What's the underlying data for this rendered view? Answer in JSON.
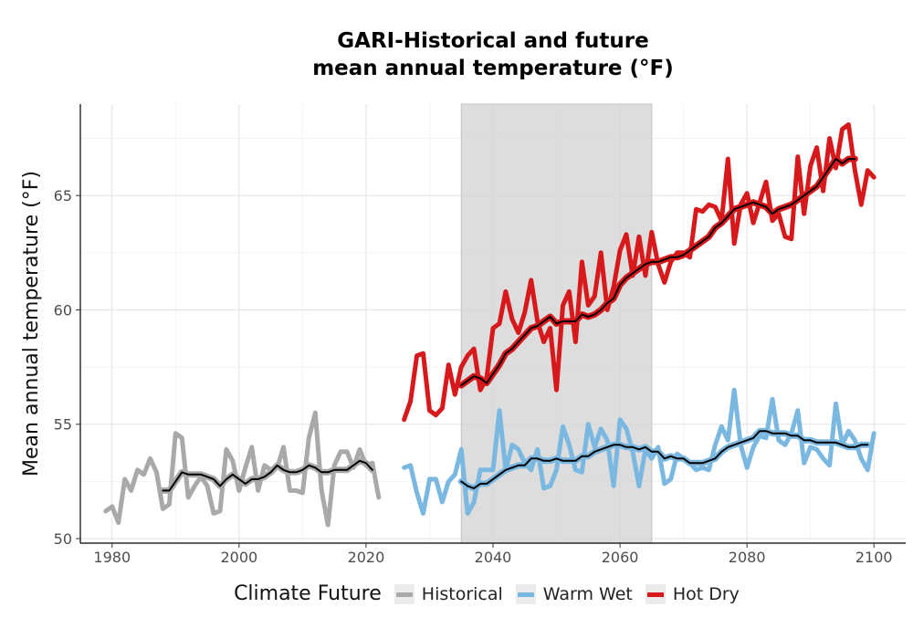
{
  "chart_data": {
    "type": "line",
    "title": "GARI-Historical and future",
    "subtitle": "mean annual temperature (°F)",
    "xlabel": "",
    "ylabel": "Mean annual temperature (°F)",
    "xlim": [
      1975,
      2105
    ],
    "ylim": [
      49.8,
      69
    ],
    "x_ticks": [
      1980,
      2000,
      2020,
      2040,
      2060,
      2080,
      2100
    ],
    "y_ticks": [
      50,
      55,
      60,
      65
    ],
    "grid": true,
    "shaded_period": [
      2035,
      2065
    ],
    "legend": {
      "title": "Climate Future",
      "position": "bottom",
      "items": [
        {
          "name": "Historical",
          "color": "#a9a9a9"
        },
        {
          "name": "Warm Wet",
          "color": "#7ab8e1"
        },
        {
          "name": "Hot Dry",
          "color": "#d7191c"
        }
      ]
    },
    "series": [
      {
        "name": "Historical",
        "color": "#a9a9a9",
        "start_year": 1979,
        "values": [
          51.2,
          51.4,
          50.7,
          52.6,
          52.1,
          53.0,
          52.8,
          53.5,
          52.9,
          51.3,
          51.5,
          54.6,
          54.4,
          51.8,
          52.3,
          52.7,
          52.3,
          51.1,
          51.2,
          53.9,
          53.4,
          52.1,
          53.1,
          54.0,
          52.1,
          53.2,
          53.0,
          53.1,
          54.0,
          52.1,
          52.1,
          52.0,
          54.4,
          55.5,
          52.1,
          50.6,
          53.2,
          53.8,
          53.8,
          53.1,
          53.9,
          53.2,
          53.3,
          51.8
        ]
      },
      {
        "name": "Historical (moving average)",
        "color": "#000000",
        "start_year": 1988,
        "values": [
          52.1,
          52.1,
          52.5,
          52.9,
          52.8,
          52.8,
          52.8,
          52.7,
          52.6,
          52.3,
          52.6,
          52.8,
          52.6,
          52.4,
          52.6,
          52.6,
          52.7,
          52.9,
          53.2,
          53.0,
          52.9,
          52.9,
          53.0,
          53.2,
          53.1,
          52.9,
          52.9,
          53.0,
          53.0,
          53.0,
          53.2,
          53.4,
          53.3,
          53.0
        ]
      },
      {
        "name": "Warm Wet",
        "color": "#7ab8e1",
        "start_year": 2026,
        "values": [
          53.1,
          53.2,
          52.0,
          51.1,
          52.6,
          52.6,
          51.6,
          52.5,
          52.8,
          53.9,
          51.1,
          51.6,
          53.0,
          53.0,
          53.0,
          55.6,
          53.0,
          54.1,
          53.9,
          53.3,
          53.0,
          53.9,
          52.2,
          52.3,
          53.0,
          54.9,
          54.1,
          53.0,
          52.9,
          55.0,
          54.0,
          54.8,
          54.3,
          52.3,
          55.2,
          54.8,
          53.8,
          52.3,
          53.9,
          53.5,
          54.0,
          52.4,
          52.6,
          53.7,
          53.5,
          53.3,
          53.0,
          53.1,
          53.0,
          54.1,
          54.9,
          54.3,
          56.5,
          54.1,
          53.1,
          54.0,
          54.5,
          54.4,
          56.1,
          54.3,
          54.1,
          54.6,
          55.6,
          53.3,
          54.0,
          53.9,
          53.5,
          53.2,
          55.9,
          54.1,
          54.7,
          54.3,
          53.5,
          53.0,
          54.6
        ]
      },
      {
        "name": "Warm Wet (moving average)",
        "color": "#000000",
        "start_year": 2035,
        "values": [
          52.5,
          52.3,
          52.2,
          52.4,
          52.4,
          52.6,
          52.8,
          53.0,
          53.1,
          53.2,
          53.2,
          53.5,
          53.5,
          53.4,
          53.4,
          53.5,
          53.4,
          53.4,
          53.4,
          53.6,
          53.6,
          53.8,
          53.9,
          54.0,
          54.1,
          54.1,
          54.0,
          54.0,
          53.9,
          54.0,
          53.8,
          53.8,
          53.5,
          53.6,
          53.5,
          53.5,
          53.3,
          53.3,
          53.3,
          53.4,
          53.5,
          53.8,
          54.0,
          54.1,
          54.2,
          54.3,
          54.4,
          54.7,
          54.7,
          54.6,
          54.6,
          54.6,
          54.5,
          54.5,
          54.3,
          54.3,
          54.2,
          54.2,
          54.2,
          54.2,
          54.1,
          54.0,
          54.0,
          54.1,
          54.1
        ]
      },
      {
        "name": "Hot Dry",
        "color": "#d7191c",
        "start_year": 2026,
        "values": [
          55.2,
          56.0,
          58.0,
          58.1,
          55.6,
          55.4,
          55.7,
          57.6,
          56.3,
          57.5,
          58.0,
          58.3,
          56.5,
          57.0,
          59.2,
          59.4,
          60.8,
          59.6,
          59.0,
          59.9,
          61.3,
          59.5,
          58.6,
          59.2,
          56.5,
          60.2,
          60.8,
          58.6,
          62.1,
          60.2,
          60.6,
          62.5,
          60.0,
          61.0,
          62.6,
          63.3,
          61.5,
          63.2,
          61.5,
          63.4,
          62.0,
          61.2,
          62.1,
          62.5,
          62.5,
          62.3,
          64.4,
          64.3,
          64.6,
          64.5,
          63.9,
          66.6,
          62.9,
          64.6,
          65.1,
          63.8,
          64.7,
          65.6,
          63.9,
          64.2,
          63.2,
          63.1,
          66.7,
          64.2,
          66.3,
          67.1,
          65.2,
          67.5,
          66.2,
          67.9,
          68.1,
          66.1,
          64.6,
          66.1,
          65.8
        ]
      },
      {
        "name": "Hot Dry (moving average)",
        "color": "#000000",
        "start_year": 2035,
        "values": [
          56.7,
          56.9,
          57.1,
          57.0,
          56.8,
          57.2,
          57.6,
          58.1,
          58.3,
          58.6,
          58.9,
          59.2,
          59.3,
          59.5,
          59.7,
          59.4,
          59.5,
          59.5,
          59.5,
          59.8,
          59.7,
          59.8,
          60.0,
          60.3,
          60.5,
          61.1,
          61.4,
          61.6,
          61.8,
          62.0,
          62.1,
          62.1,
          62.2,
          62.3,
          62.3,
          62.4,
          62.6,
          62.8,
          63.0,
          63.2,
          63.6,
          63.8,
          64.1,
          64.4,
          64.5,
          64.6,
          64.7,
          64.6,
          64.5,
          64.2,
          64.4,
          64.5,
          64.6,
          64.8,
          65.0,
          65.2,
          65.4,
          65.8,
          66.2,
          66.6,
          66.4,
          66.6,
          66.6
        ]
      }
    ]
  }
}
